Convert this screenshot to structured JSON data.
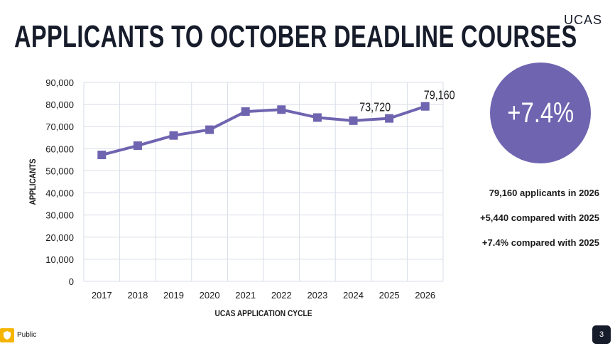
{
  "slide": {
    "title": "APPLICANTS TO OCTOBER DEADLINE COURSES",
    "logo": "UCAS",
    "page_number": "3",
    "classification": "Public"
  },
  "highlight": {
    "value": "+7.4%",
    "color": "#6f64b0"
  },
  "stats": [
    "79,160 applicants in 2026",
    "+5,440 compared with 2025",
    "+7.4% compared with 2025"
  ],
  "colors": {
    "series": "#6f64b0",
    "grid": "#d7dde8",
    "title": "#171c2b",
    "badge": "#f5b400"
  },
  "chart_data": {
    "type": "line",
    "categories": [
      "2017",
      "2018",
      "2019",
      "2020",
      "2021",
      "2022",
      "2023",
      "2024",
      "2025",
      "2026"
    ],
    "series": [
      {
        "values": [
          57200,
          61400,
          66000,
          68600,
          76800,
          77700,
          74100,
          72700,
          73720,
          79160
        ]
      }
    ],
    "data_labels": [
      {
        "index": 8,
        "text": "73,720"
      },
      {
        "index": 9,
        "text": "79,160"
      }
    ],
    "xlabel": "UCAS APPLICATION CYCLE",
    "ylabel": "APPLICANTS",
    "ylim": [
      0,
      90000
    ],
    "yticks": [
      "0",
      "10,000",
      "20,000",
      "30,000",
      "40,000",
      "50,000",
      "60,000",
      "70,000",
      "80,000",
      "90,000"
    ],
    "grid": true,
    "legend": "none"
  }
}
